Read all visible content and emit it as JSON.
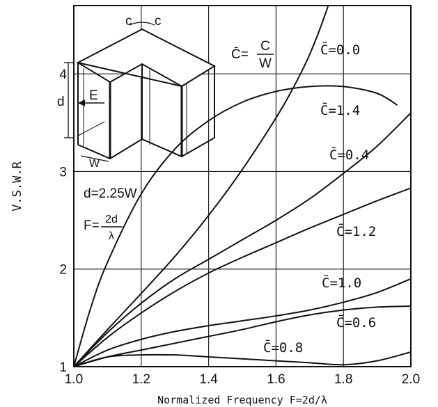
{
  "chart_data": {
    "type": "line",
    "title": "",
    "xlabel": "Normalized Frequency F=2d/λ",
    "ylabel": "V.S.W.R",
    "xlim": [
      1.0,
      2.0
    ],
    "ylim": [
      1,
      4.7
    ],
    "grid": true,
    "x_ticks": [
      "1.0",
      "1.2",
      "1.4",
      "1.6",
      "1.8",
      "2.0"
    ],
    "y_ticks": [
      "1",
      "2",
      "3",
      "4"
    ],
    "series": [
      {
        "name": "C̄=0.0",
        "x": [
          1.0,
          1.1,
          1.2,
          1.3,
          1.4,
          1.5,
          1.6,
          1.65,
          1.7,
          1.75,
          1.8
        ],
        "y": [
          1.0,
          1.38,
          1.75,
          2.13,
          2.55,
          3.02,
          3.55,
          3.85,
          4.2,
          4.65,
          5.2
        ]
      },
      {
        "name": "C̄=1.4",
        "x": [
          1.0,
          1.05,
          1.1,
          1.2,
          1.3,
          1.4,
          1.5,
          1.6,
          1.7,
          1.8,
          1.9,
          1.96
        ],
        "y": [
          1.0,
          1.6,
          2.07,
          2.77,
          3.23,
          3.52,
          3.71,
          3.82,
          3.87,
          3.87,
          3.8,
          3.68
        ]
      },
      {
        "name": "C̄=0.4",
        "x": [
          1.0,
          1.1,
          1.2,
          1.3,
          1.4,
          1.5,
          1.6,
          1.7,
          1.8,
          1.9,
          2.0
        ],
        "y": [
          1.0,
          1.35,
          1.65,
          1.9,
          2.1,
          2.3,
          2.5,
          2.72,
          2.98,
          3.26,
          3.6
        ]
      },
      {
        "name": "C̄=1.2",
        "x": [
          1.0,
          1.1,
          1.2,
          1.3,
          1.4,
          1.5,
          1.6,
          1.7,
          1.8,
          1.9,
          2.0
        ],
        "y": [
          1.0,
          1.3,
          1.55,
          1.77,
          1.96,
          2.12,
          2.27,
          2.42,
          2.56,
          2.7,
          2.83
        ]
      },
      {
        "name": "C̄=1.0",
        "x": [
          1.0,
          1.1,
          1.2,
          1.3,
          1.4,
          1.5,
          1.6,
          1.7,
          1.8,
          1.9,
          2.0
        ],
        "y": [
          1.0,
          1.17,
          1.28,
          1.36,
          1.42,
          1.47,
          1.52,
          1.58,
          1.66,
          1.76,
          1.9
        ]
      },
      {
        "name": "C̄=0.6",
        "x": [
          1.0,
          1.1,
          1.2,
          1.3,
          1.4,
          1.5,
          1.6,
          1.7,
          1.8,
          1.9,
          2.0
        ],
        "y": [
          1.0,
          1.1,
          1.17,
          1.24,
          1.31,
          1.38,
          1.46,
          1.53,
          1.58,
          1.61,
          1.62
        ]
      },
      {
        "name": "C̄=0.8",
        "x": [
          1.0,
          1.1,
          1.2,
          1.3,
          1.4,
          1.5,
          1.6,
          1.7,
          1.8,
          1.9,
          2.0
        ],
        "y": [
          1.0,
          1.1,
          1.12,
          1.12,
          1.1,
          1.08,
          1.06,
          1.04,
          1.02,
          1.06,
          1.15
        ]
      }
    ],
    "annotations": {
      "cbar_def_lhs": "C̄=",
      "cbar_def_num": "C",
      "cbar_def_den": "W",
      "d_relation": "d=2.25W",
      "f_def_lhs": "F=",
      "f_def_num": "2d",
      "f_def_den": "λ",
      "inset_c1": "c",
      "inset_c2": "c",
      "inset_d": "d",
      "inset_E": "E",
      "inset_W": "W"
    }
  }
}
